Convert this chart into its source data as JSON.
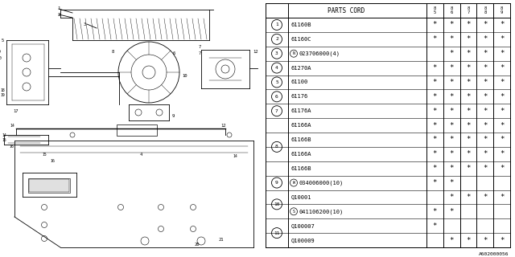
{
  "code": "A602000056",
  "table_header": [
    "PARTS CORD",
    "85",
    "86",
    "87",
    "88",
    "89"
  ],
  "rows": [
    {
      "ref": "1",
      "part": "61160B",
      "marks": [
        1,
        1,
        1,
        1,
        1
      ],
      "group_size": 1
    },
    {
      "ref": "2",
      "part": "61160C",
      "marks": [
        1,
        1,
        1,
        1,
        1
      ],
      "group_size": 1
    },
    {
      "ref": "3",
      "part": "N023706000(4)",
      "marks": [
        0,
        1,
        1,
        1,
        1
      ],
      "group_size": 1
    },
    {
      "ref": "4",
      "part": "61270A",
      "marks": [
        1,
        1,
        1,
        1,
        1
      ],
      "group_size": 1
    },
    {
      "ref": "5",
      "part": "61100",
      "marks": [
        1,
        1,
        1,
        1,
        1
      ],
      "group_size": 1
    },
    {
      "ref": "6",
      "part": "61176",
      "marks": [
        1,
        1,
        1,
        1,
        1
      ],
      "group_size": 1
    },
    {
      "ref": "7",
      "part": "61176A",
      "marks": [
        1,
        1,
        1,
        1,
        1
      ],
      "group_size": 1
    },
    {
      "ref": "",
      "part": "61166A",
      "marks": [
        1,
        1,
        1,
        1,
        1
      ],
      "group_size": 0
    },
    {
      "ref": "",
      "part": "61166B",
      "marks": [
        1,
        1,
        1,
        1,
        1
      ],
      "group_size": 0
    },
    {
      "ref": "8",
      "part": "61166A",
      "marks": [
        1,
        1,
        1,
        1,
        1
      ],
      "group_size": 4
    },
    {
      "ref": "",
      "part": "61166B",
      "marks": [
        1,
        1,
        1,
        1,
        1
      ],
      "group_size": 0
    },
    {
      "ref": "9",
      "part": "W034006000(10)",
      "marks": [
        1,
        1,
        0,
        0,
        0
      ],
      "group_size": 1
    },
    {
      "ref": "",
      "part": "Q10001",
      "marks": [
        0,
        1,
        1,
        1,
        1
      ],
      "group_size": 0
    },
    {
      "ref": "10",
      "part": "S041106200(10)",
      "marks": [
        1,
        1,
        0,
        0,
        0
      ],
      "group_size": 2
    },
    {
      "ref": "",
      "part": "Q100007",
      "marks": [
        1,
        0,
        0,
        0,
        0
      ],
      "group_size": 0
    },
    {
      "ref": "11",
      "part": "Q100009",
      "marks": [
        0,
        1,
        1,
        1,
        1
      ],
      "group_size": 2
    }
  ],
  "bg_color": "#ffffff",
  "line_color": "#000000",
  "text_color": "#000000"
}
